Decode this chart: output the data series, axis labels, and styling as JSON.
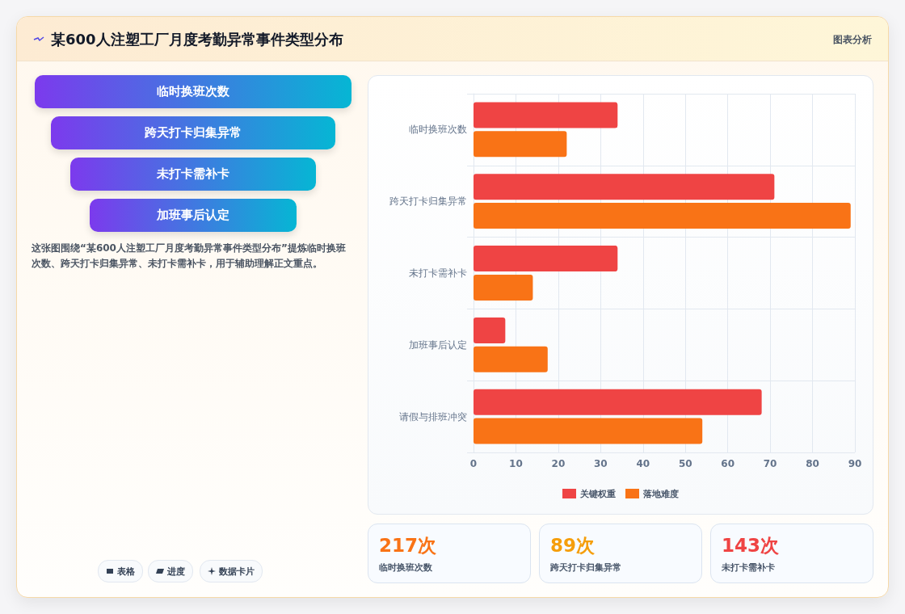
{
  "chart_data": [
    {
      "type": "other",
      "title": "某600人注塑工厂月度考勤异常事件类型分布",
      "annotations": [
        "图表分析",
        "临时换班次数",
        "跨天打卡归集异常",
        "未打卡需补卡",
        "加班事后认定",
        "这张图围绕“某600人注塑工厂月度考勤异常事件类型分布”提炼临时换班次数、跨天打卡归集异常、未打卡需补卡，用于辅助理解正文重点。",
        "表格",
        "进度",
        "数据卡片"
      ]
    },
    {
      "type": "bar",
      "orientation": "horizontal",
      "categories": [
        "临时换班次数",
        "跨天打卡归集异常",
        "未打卡需补卡",
        "加班事后认定",
        "请假与排班冲突"
      ],
      "series": [
        {
          "name": "关键权重",
          "color": "#ef4444",
          "values": [
            34,
            71,
            34,
            7.5,
            68
          ]
        },
        {
          "name": "落地难度",
          "color": "#f97316",
          "values": [
            22,
            89,
            14,
            17.5,
            54
          ]
        }
      ],
      "xlim": [
        0,
        90
      ],
      "xticks": [
        0,
        10,
        20,
        30,
        40,
        50,
        60,
        70,
        80,
        90
      ],
      "grid": true,
      "legend": "bottom"
    },
    {
      "type": "other",
      "annotations": [
        "217次",
        "临时换班次数",
        "89次",
        "跨天打卡归集异常",
        "143次",
        "未打卡需补卡"
      ]
    }
  ]
}
